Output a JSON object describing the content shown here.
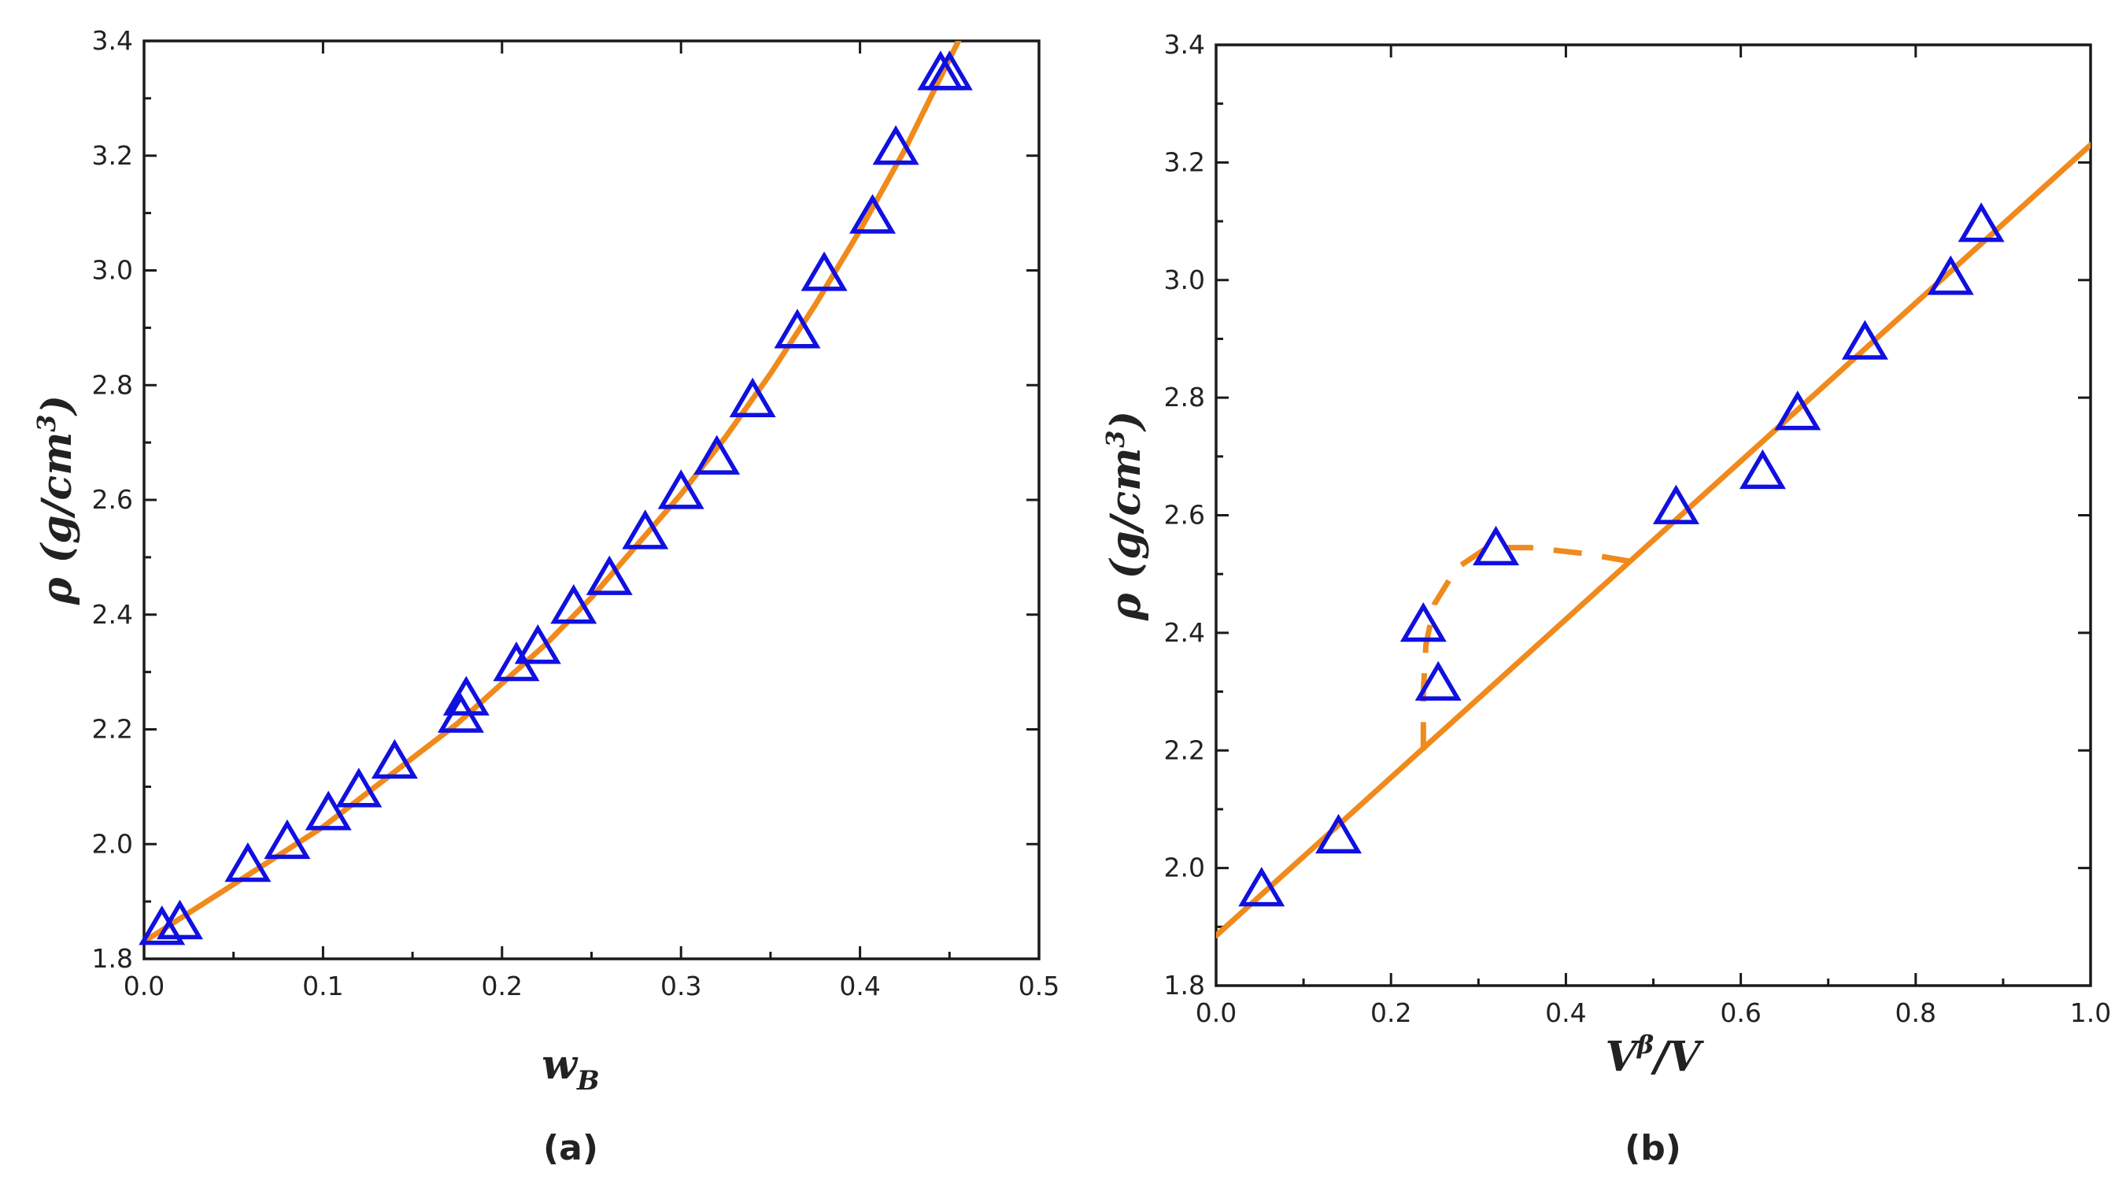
{
  "colors": {
    "marker": "#1010e0",
    "fit": "#f08a1c",
    "axis": "#1a1a1a"
  },
  "chart_data": [
    {
      "type": "scatter",
      "panel_label": "(a)",
      "xlabel": {
        "main": "w",
        "sub": "B"
      },
      "ylabel": {
        "main": "ρ (g/cm",
        "sup": "3",
        "close": ")"
      },
      "xlim": [
        0.0,
        0.5
      ],
      "ylim": [
        1.8,
        3.4
      ],
      "xticks": [
        0.0,
        0.1,
        0.2,
        0.3,
        0.4,
        0.5
      ],
      "xtick_labels": [
        "0.0",
        "0.1",
        "0.2",
        "0.3",
        "0.4",
        "0.5"
      ],
      "yticks": [
        1.8,
        2.0,
        2.2,
        2.4,
        2.6,
        2.8,
        3.0,
        3.2,
        3.4
      ],
      "ytick_labels": [
        "1.8",
        "2.0",
        "2.2",
        "2.4",
        "2.6",
        "2.8",
        "3.0",
        "3.2",
        "3.4"
      ],
      "series": [
        {
          "name": "measured",
          "marker": "triangle",
          "x": [
            0.01,
            0.02,
            0.058,
            0.08,
            0.103,
            0.12,
            0.14,
            0.177,
            0.18,
            0.208,
            0.22,
            0.24,
            0.26,
            0.28,
            0.3,
            0.32,
            0.34,
            0.365,
            0.38,
            0.407,
            0.42,
            0.445,
            0.45
          ],
          "y": [
            1.85,
            1.86,
            1.96,
            2.0,
            2.05,
            2.09,
            2.14,
            2.22,
            2.25,
            2.31,
            2.34,
            2.41,
            2.46,
            2.54,
            2.61,
            2.67,
            2.77,
            2.89,
            2.99,
            3.09,
            3.21,
            3.34,
            3.34
          ]
        },
        {
          "name": "fit",
          "style": "solid",
          "x": [
            0.0,
            0.025,
            0.05,
            0.075,
            0.1,
            0.125,
            0.15,
            0.175,
            0.2,
            0.225,
            0.25,
            0.275,
            0.3,
            0.325,
            0.35,
            0.375,
            0.4,
            0.425,
            0.455
          ],
          "y": [
            1.83,
            1.88,
            1.93,
            1.98,
            2.03,
            2.09,
            2.15,
            2.21,
            2.28,
            2.35,
            2.43,
            2.52,
            2.61,
            2.71,
            2.82,
            2.94,
            3.07,
            3.21,
            3.4
          ]
        }
      ]
    },
    {
      "type": "scatter",
      "panel_label": "(b)",
      "xlabel": {
        "main": "V",
        "sup": "β",
        "rest": "/V"
      },
      "ylabel": {
        "main": "ρ (g/cm",
        "sup": "3",
        "close": ")"
      },
      "xlim": [
        0.0,
        1.0
      ],
      "ylim": [
        1.8,
        3.4
      ],
      "xticks": [
        0.0,
        0.2,
        0.4,
        0.6,
        0.8,
        1.0
      ],
      "xtick_labels": [
        "0.0",
        "0.2",
        "0.4",
        "0.6",
        "0.8",
        "1.0"
      ],
      "yticks": [
        1.8,
        2.0,
        2.2,
        2.4,
        2.6,
        2.8,
        3.0,
        3.2,
        3.4
      ],
      "ytick_labels": [
        "1.8",
        "2.0",
        "2.2",
        "2.4",
        "2.6",
        "2.8",
        "3.0",
        "3.2",
        "3.4"
      ],
      "series": [
        {
          "name": "measured",
          "marker": "triangle",
          "x": [
            0.052,
            0.14,
            0.237,
            0.254,
            0.32,
            0.526,
            0.625,
            0.665,
            0.742,
            0.84,
            0.875
          ],
          "y": [
            1.96,
            2.05,
            2.41,
            2.31,
            2.54,
            2.61,
            2.67,
            2.77,
            2.89,
            3.0,
            3.09
          ]
        },
        {
          "name": "linear fit",
          "style": "solid",
          "x": [
            0.0,
            1.0
          ],
          "y": [
            1.885,
            3.23
          ]
        },
        {
          "name": "dashed curve",
          "style": "dashed",
          "x": [
            0.237,
            0.237,
            0.24,
            0.25,
            0.275,
            0.31,
            0.36,
            0.42,
            0.48
          ],
          "y": [
            2.2,
            2.3,
            2.38,
            2.45,
            2.51,
            2.545,
            2.545,
            2.535,
            2.52
          ]
        }
      ]
    }
  ]
}
